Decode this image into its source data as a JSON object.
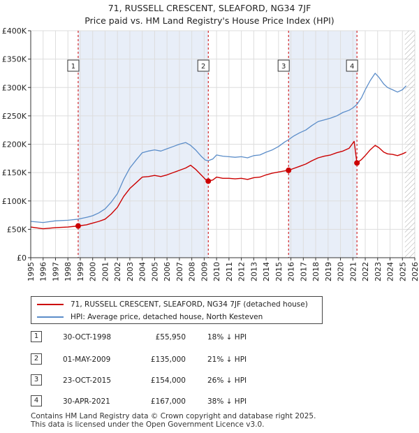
{
  "title_line1": "71, RUSSELL CRESCENT, SLEAFORD, NG34 7JF",
  "title_line2": "Price paid vs. HM Land Registry's House Price Index (HPI)",
  "colors": {
    "property": "#cc0000",
    "hpi": "#5b8dc9",
    "shade": "#e8eef8",
    "hatch": "#aaaaaa",
    "grid": "#dddddd",
    "marker_line": "#cc0000"
  },
  "legend": {
    "property_label": "71, RUSSELL CRESCENT, SLEAFORD, NG34 7JF (detached house)",
    "hpi_label": "HPI: Average price, detached house, North Kesteven"
  },
  "transactions": [
    {
      "num": "1",
      "date": "30-OCT-1998",
      "price": "£55,950",
      "hpi": "18% ↓ HPI"
    },
    {
      "num": "2",
      "date": "01-MAY-2009",
      "price": "£135,000",
      "hpi": "21% ↓ HPI"
    },
    {
      "num": "3",
      "date": "23-OCT-2015",
      "price": "£154,000",
      "hpi": "26% ↓ HPI"
    },
    {
      "num": "4",
      "date": "30-APR-2021",
      "price": "£167,000",
      "hpi": "38% ↓ HPI"
    }
  ],
  "footer_line1": "Contains HM Land Registry data © Crown copyright and database right 2025.",
  "footer_line2": "This data is licensed under the Open Government Licence v3.0.",
  "chart_data": {
    "type": "line",
    "title": "71, RUSSELL CRESCENT, SLEAFORD, NG34 7JF — Price paid vs. HM Land Registry's House Price Index (HPI)",
    "xlim": [
      1995,
      2026
    ],
    "ylim": [
      0,
      400000
    ],
    "x_ticks": [
      1995,
      1996,
      1997,
      1998,
      1999,
      2000,
      2001,
      2002,
      2003,
      2004,
      2005,
      2006,
      2007,
      2008,
      2009,
      2010,
      2011,
      2012,
      2013,
      2014,
      2015,
      2016,
      2017,
      2018,
      2019,
      2020,
      2021,
      2022,
      2023,
      2024,
      2025,
      2026
    ],
    "y_ticks": [
      0,
      50000,
      100000,
      150000,
      200000,
      250000,
      300000,
      350000,
      400000
    ],
    "y_tick_labels": [
      "£0",
      "£50K",
      "£100K",
      "£150K",
      "£200K",
      "£250K",
      "£300K",
      "£350K",
      "£400K"
    ],
    "future_from": 2025.2,
    "sales": [
      {
        "label": "1",
        "x": 1998.83,
        "y": 55950
      },
      {
        "label": "2",
        "x": 2009.33,
        "y": 135000
      },
      {
        "label": "3",
        "x": 2015.81,
        "y": 154000
      },
      {
        "label": "4",
        "x": 2021.33,
        "y": 167000
      }
    ],
    "series": [
      {
        "name": "HPI: Average price, detached house, North Kesteven",
        "x": [
          1995,
          1996,
          1997,
          1998,
          1998.83,
          1999.5,
          2000,
          2000.5,
          2001,
          2001.5,
          2002,
          2002.5,
          2003,
          2003.5,
          2004,
          2004.5,
          2005,
          2005.5,
          2006,
          2006.5,
          2007,
          2007.5,
          2007.9,
          2008.3,
          2008.8,
          2009.1,
          2009.33,
          2009.7,
          2010,
          2010.5,
          2011,
          2011.5,
          2012,
          2012.5,
          2013,
          2013.5,
          2014,
          2014.5,
          2015,
          2015.5,
          2015.81,
          2016.2,
          2016.7,
          2017.2,
          2017.7,
          2018.2,
          2018.7,
          2019.2,
          2019.7,
          2020.2,
          2020.7,
          2021,
          2021.33,
          2021.7,
          2022,
          2022.4,
          2022.8,
          2023.1,
          2023.5,
          2023.8,
          2024.2,
          2024.6,
          2025,
          2025.3
        ],
        "y": [
          64000,
          62000,
          65000,
          66000,
          68000,
          71000,
          74000,
          79000,
          86000,
          98000,
          113000,
          138000,
          158000,
          172000,
          185000,
          188000,
          190000,
          188000,
          192000,
          196000,
          200000,
          203000,
          198000,
          190000,
          178000,
          172000,
          171000,
          174000,
          181000,
          179000,
          178000,
          177000,
          178000,
          176000,
          180000,
          181000,
          186000,
          190000,
          196000,
          204000,
          208000,
          214000,
          220000,
          225000,
          233000,
          240000,
          243000,
          246000,
          250000,
          256000,
          260000,
          264000,
          270000,
          282000,
          296000,
          312000,
          325000,
          318000,
          306000,
          300000,
          296000,
          292000,
          296000,
          303000
        ]
      },
      {
        "name": "71, RUSSELL CRESCENT, SLEAFORD, NG34 7JF (detached house)",
        "x": [
          1995,
          1996,
          1997,
          1998,
          1998.83,
          1999.5,
          2000,
          2000.5,
          2001,
          2001.5,
          2002,
          2002.5,
          2003,
          2003.5,
          2004,
          2004.5,
          2005,
          2005.5,
          2006,
          2006.5,
          2007,
          2007.5,
          2007.9,
          2008.3,
          2008.8,
          2009.1,
          2009.33,
          2009.7,
          2010,
          2010.5,
          2011,
          2011.5,
          2012,
          2012.5,
          2013,
          2013.5,
          2014,
          2014.5,
          2015,
          2015.5,
          2015.81,
          2016.2,
          2016.7,
          2017.2,
          2017.7,
          2018.2,
          2018.7,
          2019.2,
          2019.7,
          2020.2,
          2020.7,
          2021.1,
          2021.33,
          2021.7,
          2022,
          2022.4,
          2022.8,
          2023.1,
          2023.5,
          2023.8,
          2024.2,
          2024.6,
          2025,
          2025.3
        ],
        "y": [
          54000,
          51000,
          53000,
          54000,
          55950,
          58000,
          61000,
          64000,
          68000,
          77000,
          89000,
          108000,
          122000,
          132000,
          142000,
          143000,
          145000,
          143000,
          146000,
          150000,
          154000,
          158000,
          163000,
          156000,
          145000,
          138000,
          135000,
          137000,
          142000,
          140000,
          140000,
          139000,
          140000,
          138000,
          141000,
          142000,
          146000,
          149000,
          151000,
          153000,
          154000,
          157000,
          161000,
          165000,
          171000,
          176000,
          179000,
          181000,
          185000,
          188000,
          193000,
          205000,
          167000,
          173000,
          180000,
          190000,
          198000,
          194000,
          186000,
          183000,
          182000,
          180000,
          183000,
          186000
        ]
      }
    ]
  }
}
